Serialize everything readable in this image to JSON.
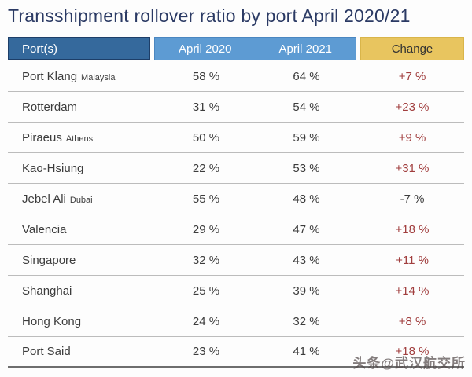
{
  "title": "Transshipment rollover ratio by port April 2020/21",
  "watermark": "头条@武汉航交所",
  "table": {
    "headers": {
      "port": "Port(s)",
      "col2020": "April 2020",
      "col2021": "April 2021",
      "change": "Change"
    },
    "rows": [
      {
        "port": "Port Klang",
        "sublabel": "Malaysia",
        "apr2020": "58 %",
        "apr2021": "64 %",
        "change": "+7 %"
      },
      {
        "port": "Rotterdam",
        "sublabel": "",
        "apr2020": "31 %",
        "apr2021": "54 %",
        "change": "+23 %"
      },
      {
        "port": "Piraeus",
        "sublabel": "Athens",
        "apr2020": "50 %",
        "apr2021": "59 %",
        "change": "+9 %"
      },
      {
        "port": "Kao-Hsiung",
        "sublabel": "",
        "apr2020": "22 %",
        "apr2021": "53 %",
        "change": "+31 %"
      },
      {
        "port": "Jebel Ali",
        "sublabel": "Dubai",
        "apr2020": "55 %",
        "apr2021": "48 %",
        "change": "-7 %"
      },
      {
        "port": "Valencia",
        "sublabel": "",
        "apr2020": "29 %",
        "apr2021": "47 %",
        "change": "+18 %"
      },
      {
        "port": "Singapore",
        "sublabel": "",
        "apr2020": "32 %",
        "apr2021": "43 %",
        "change": "+11 %"
      },
      {
        "port": "Shanghai",
        "sublabel": "",
        "apr2020": "25 %",
        "apr2021": "39 %",
        "change": "+14 %"
      },
      {
        "port": "Hong Kong",
        "sublabel": "",
        "apr2020": "24 %",
        "apr2021": "32 %",
        "change": "+8 %"
      },
      {
        "port": "Port Said",
        "sublabel": "",
        "apr2020": "23 %",
        "apr2021": "41 %",
        "change": "+18 %"
      }
    ]
  },
  "colors": {
    "title": "#2b3a64",
    "header_ports_bg": "#35699c",
    "header_ports_border": "#1d3e68",
    "header_months_bg": "#5d9bd3",
    "header_change_bg": "#e8c55f",
    "change_positive": "#a13e3e",
    "body_text": "#3c3c3c"
  },
  "chart_data": {
    "type": "table",
    "title": "Transshipment rollover ratio by port April 2020/21",
    "columns": [
      "Port(s)",
      "April 2020",
      "April 2021",
      "Change"
    ],
    "units": "%",
    "rows": [
      {
        "port": "Port Klang (Malaysia)",
        "april_2020": 58,
        "april_2021": 64,
        "change": 7
      },
      {
        "port": "Rotterdam",
        "april_2020": 31,
        "april_2021": 54,
        "change": 23
      },
      {
        "port": "Piraeus (Athens)",
        "april_2020": 50,
        "april_2021": 59,
        "change": 9
      },
      {
        "port": "Kao-Hsiung",
        "april_2020": 22,
        "april_2021": 53,
        "change": 31
      },
      {
        "port": "Jebel Ali (Dubai)",
        "april_2020": 55,
        "april_2021": 48,
        "change": -7
      },
      {
        "port": "Valencia",
        "april_2020": 29,
        "april_2021": 47,
        "change": 18
      },
      {
        "port": "Singapore",
        "april_2020": 32,
        "april_2021": 43,
        "change": 11
      },
      {
        "port": "Shanghai",
        "april_2020": 25,
        "april_2021": 39,
        "change": 14
      },
      {
        "port": "Hong Kong",
        "april_2020": 24,
        "april_2021": 32,
        "change": 8
      },
      {
        "port": "Port Said",
        "april_2020": 23,
        "april_2021": 41,
        "change": 18
      }
    ]
  }
}
